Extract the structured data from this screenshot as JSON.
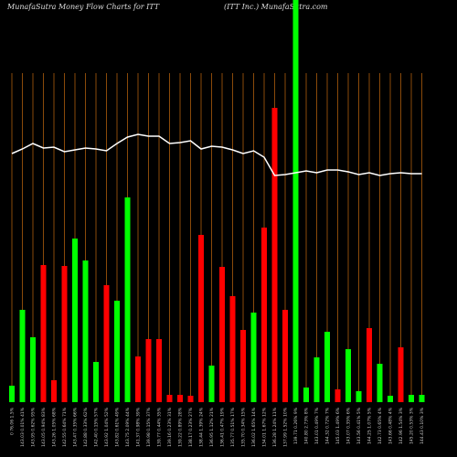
{
  "chart_data": {
    "type": "bar",
    "title": "MunafaSutra  Money Flow  Charts for ITT",
    "subtitle": "(ITT Inc.) MunafaSutra.com",
    "categories": [
      "0 76.06 1.5%",
      "143.03 0.01% 41%",
      "143.95 0.62% 95%",
      "143.05 0.94% 83%",
      "143.26 1.05% 68%",
      "142.55 0.64% 71%",
      "143.47 0.35% 66%",
      "142.88 0.33% 62%",
      "142.40 0.15% 57%",
      "143.92 1.04% 52%",
      "143.82 0.61% 49%",
      "143.75 2.09% 44%",
      "141.37 0.98% 39%",
      "139.98 0.15% 37%",
      "139.77 0.44% 35%",
      "139.16 0.23% 31%",
      "139.22 0.89% 28%",
      "138.17 0.23% 27%",
      "138.44 1.39% 24%",
      "136.95 1.12% 21%",
      "136.41 0.47% 19%",
      "135.77 0.51% 17%",
      "135.70 0.34% 15%",
      "136.02 1.65% 14%",
      "134.01 1.67% 12%",
      "136.28 1.24% 11%",
      "137.99 1.52% 10%",
      "139.71 0.26% 9%",
      "140.80 2.73% 8%",
      "143.01 0.49% 7%",
      "144.32 0.72% 7%",
      "145.03 1.49% 6%",
      "143.07 0.35% 6%",
      "143.56 0.41% 5%",
      "144.25 1.07% 5%",
      "142.73 0.65% 4%",
      "143.66 0.48% 4%",
      "142.96 1.54% 3%",
      "145.20 0.53% 3%",
      "144.43 0.10% 3%"
    ],
    "values": [
      18,
      101,
      71,
      150,
      24,
      149,
      179,
      155,
      44,
      128,
      111,
      224,
      50,
      69,
      69,
      8,
      8,
      7,
      183,
      40,
      148,
      116,
      79,
      98,
      191,
      322,
      101,
      440,
      16,
      49,
      77,
      14,
      58,
      12,
      81,
      42,
      7,
      60,
      8,
      8
    ],
    "colors": [
      "#00ff00",
      "#00ff00",
      "#00ff00",
      "#ff0000",
      "#ff0000",
      "#ff0000",
      "#00ff00",
      "#00ff00",
      "#00ff00",
      "#ff0000",
      "#00ff00",
      "#00ff00",
      "#ff0000",
      "#ff0000",
      "#ff0000",
      "#ff0000",
      "#ff0000",
      "#ff0000",
      "#ff0000",
      "#00ff00",
      "#ff0000",
      "#ff0000",
      "#ff0000",
      "#00ff00",
      "#ff0000",
      "#ff0000",
      "#ff0000",
      "#00ff00",
      "#00ff00",
      "#00ff00",
      "#00ff00",
      "#ff0000",
      "#00ff00",
      "#00ff00",
      "#ff0000",
      "#00ff00",
      "#00ff00",
      "#ff0000",
      "#00ff00",
      "#00ff00"
    ],
    "line_color": "#ffffff",
    "line_values": [
      272,
      277,
      283,
      278,
      279,
      274,
      276,
      278,
      277,
      275,
      283,
      290,
      293,
      291,
      291,
      283,
      284,
      286,
      277,
      280,
      279,
      276,
      272,
      275,
      268,
      248,
      249,
      251,
      253,
      251,
      254,
      254,
      252,
      249,
      251,
      248,
      250,
      251,
      250,
      250
    ],
    "ylim": [
      0,
      440
    ],
    "grid": true
  }
}
